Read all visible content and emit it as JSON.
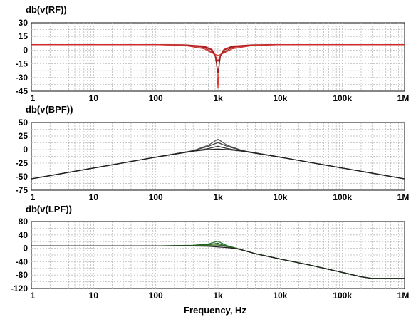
{
  "chart_data": [
    {
      "type": "line",
      "title": "db(v(RF))",
      "xscale": "log",
      "xlim": [
        1,
        1000000
      ],
      "ylim": [
        -45,
        30
      ],
      "yticks": [
        "30",
        "15",
        "0",
        "-15",
        "-30",
        "-45"
      ],
      "xticks": [
        "1",
        "10",
        "100",
        "1k",
        "10k",
        "100k",
        "1M"
      ],
      "grid": true,
      "series": [
        {
          "color": "#e53935",
          "x": [
            1,
            10,
            100,
            300,
            600,
            800,
            900,
            950,
            1000,
            1050,
            1100,
            1250,
            1700,
            3500,
            10000,
            100000,
            1000000
          ],
          "values": [
            6,
            6,
            6,
            5.8,
            4.5,
            1,
            -5,
            -12,
            -42,
            -12,
            -5,
            1,
            4.5,
            5.8,
            6,
            6,
            6
          ]
        },
        {
          "color": "#8e1b1b",
          "x": [
            1,
            10,
            100,
            300,
            600,
            800,
            900,
            1000,
            1100,
            1250,
            1700,
            3500,
            10000,
            100000,
            1000000
          ],
          "values": [
            6,
            6,
            6,
            5.7,
            4,
            0,
            -6,
            -25,
            -6,
            0,
            4,
            5.7,
            6,
            6,
            6
          ]
        },
        {
          "color": "#b22222",
          "x": [
            1,
            10,
            100,
            300,
            600,
            800,
            900,
            1000,
            1100,
            1250,
            1700,
            3500,
            10000,
            100000,
            1000000
          ],
          "values": [
            6,
            6,
            6,
            5.5,
            3,
            -2,
            -6,
            -12,
            -6,
            -2,
            3,
            5.5,
            6,
            6,
            6
          ]
        },
        {
          "color": "#d32f2f",
          "x": [
            1,
            10,
            100,
            300,
            600,
            800,
            1000,
            1250,
            1700,
            3500,
            10000,
            100000,
            1000000
          ],
          "values": [
            6,
            6,
            6,
            5,
            1.5,
            -3,
            -6,
            -3,
            1.5,
            5,
            6,
            6,
            6
          ]
        }
      ]
    },
    {
      "type": "line",
      "title": "db(v(BPF))",
      "xscale": "log",
      "xlim": [
        1,
        1000000
      ],
      "ylim": [
        -75,
        50
      ],
      "yticks": [
        "50",
        "25",
        "0",
        "-25",
        "-50",
        "-75"
      ],
      "xticks": [
        "1",
        "10",
        "100",
        "1k",
        "10k",
        "100k",
        "1M"
      ],
      "grid": true,
      "series": [
        {
          "color": "#5a5a5a",
          "x": [
            1,
            10,
            100,
            400,
            700,
            900,
            1000,
            1100,
            1400,
            2500,
            10000,
            100000,
            1000000
          ],
          "values": [
            -54,
            -34,
            -14,
            -2,
            8,
            16,
            19,
            16,
            8,
            -2,
            -14,
            -34,
            -54
          ]
        },
        {
          "color": "#444444",
          "x": [
            1,
            10,
            100,
            400,
            700,
            900,
            1000,
            1100,
            1400,
            2500,
            10000,
            100000,
            1000000
          ],
          "values": [
            -54,
            -34,
            -14,
            -2,
            6,
            11,
            13,
            11,
            6,
            -2,
            -14,
            -34,
            -54
          ]
        },
        {
          "color": "#333333",
          "x": [
            1,
            10,
            100,
            400,
            700,
            1000,
            1400,
            2500,
            10000,
            100000,
            1000000
          ],
          "values": [
            -54,
            -34,
            -14,
            -3,
            2,
            6,
            2,
            -3,
            -14,
            -34,
            -54
          ]
        },
        {
          "color": "#222222",
          "x": [
            1,
            10,
            100,
            400,
            700,
            1000,
            1400,
            2500,
            10000,
            100000,
            1000000
          ],
          "values": [
            -54,
            -34,
            -14,
            -3,
            0,
            1,
            0,
            -3,
            -14,
            -34,
            -54
          ]
        }
      ]
    },
    {
      "type": "line",
      "title": "db(v(LPF))",
      "xscale": "log",
      "xlim": [
        1,
        1000000
      ],
      "ylim": [
        -120,
        80
      ],
      "yticks": [
        "80",
        "40",
        "0",
        "-40",
        "-80",
        "-120"
      ],
      "xticks": [
        "1",
        "10",
        "100",
        "1k",
        "10k",
        "100k",
        "1M"
      ],
      "grid": true,
      "xlabel": "Frequency, Hz",
      "series": [
        {
          "color": "#2e7d32",
          "x": [
            1,
            10,
            100,
            400,
            700,
            900,
            1000,
            1100,
            1400,
            2000,
            4000,
            10000,
            30000,
            100000,
            200000,
            300000,
            1000000
          ],
          "values": [
            7,
            7,
            7,
            9,
            13,
            19,
            21,
            17,
            8,
            0,
            -16,
            -32,
            -50,
            -72,
            -85,
            -90,
            -90
          ]
        },
        {
          "color": "#1b5e20",
          "x": [
            1,
            10,
            100,
            400,
            700,
            900,
            1000,
            1100,
            1400,
            2000,
            4000,
            10000,
            30000,
            100000,
            200000,
            300000,
            1000000
          ],
          "values": [
            7,
            7,
            7,
            8.5,
            11,
            14,
            15,
            12,
            6,
            0,
            -16,
            -32,
            -50,
            -72,
            -85,
            -90,
            -90
          ]
        },
        {
          "color": "#33691e",
          "x": [
            1,
            10,
            100,
            400,
            700,
            1000,
            1400,
            2000,
            4000,
            10000,
            30000,
            100000,
            200000,
            300000,
            1000000
          ],
          "values": [
            7,
            7,
            7,
            8,
            9,
            10,
            5,
            0,
            -16,
            -32,
            -50,
            -72,
            -85,
            -90,
            -90
          ]
        },
        {
          "color": "#222222",
          "x": [
            1,
            10,
            100,
            400,
            700,
            1000,
            1400,
            2000,
            4000,
            10000,
            30000,
            100000,
            200000,
            300000,
            1000000
          ],
          "values": [
            7,
            7,
            7,
            7,
            6,
            4,
            2,
            -1,
            -16,
            -32,
            -50,
            -72,
            -85,
            -90,
            -90
          ]
        }
      ]
    }
  ]
}
